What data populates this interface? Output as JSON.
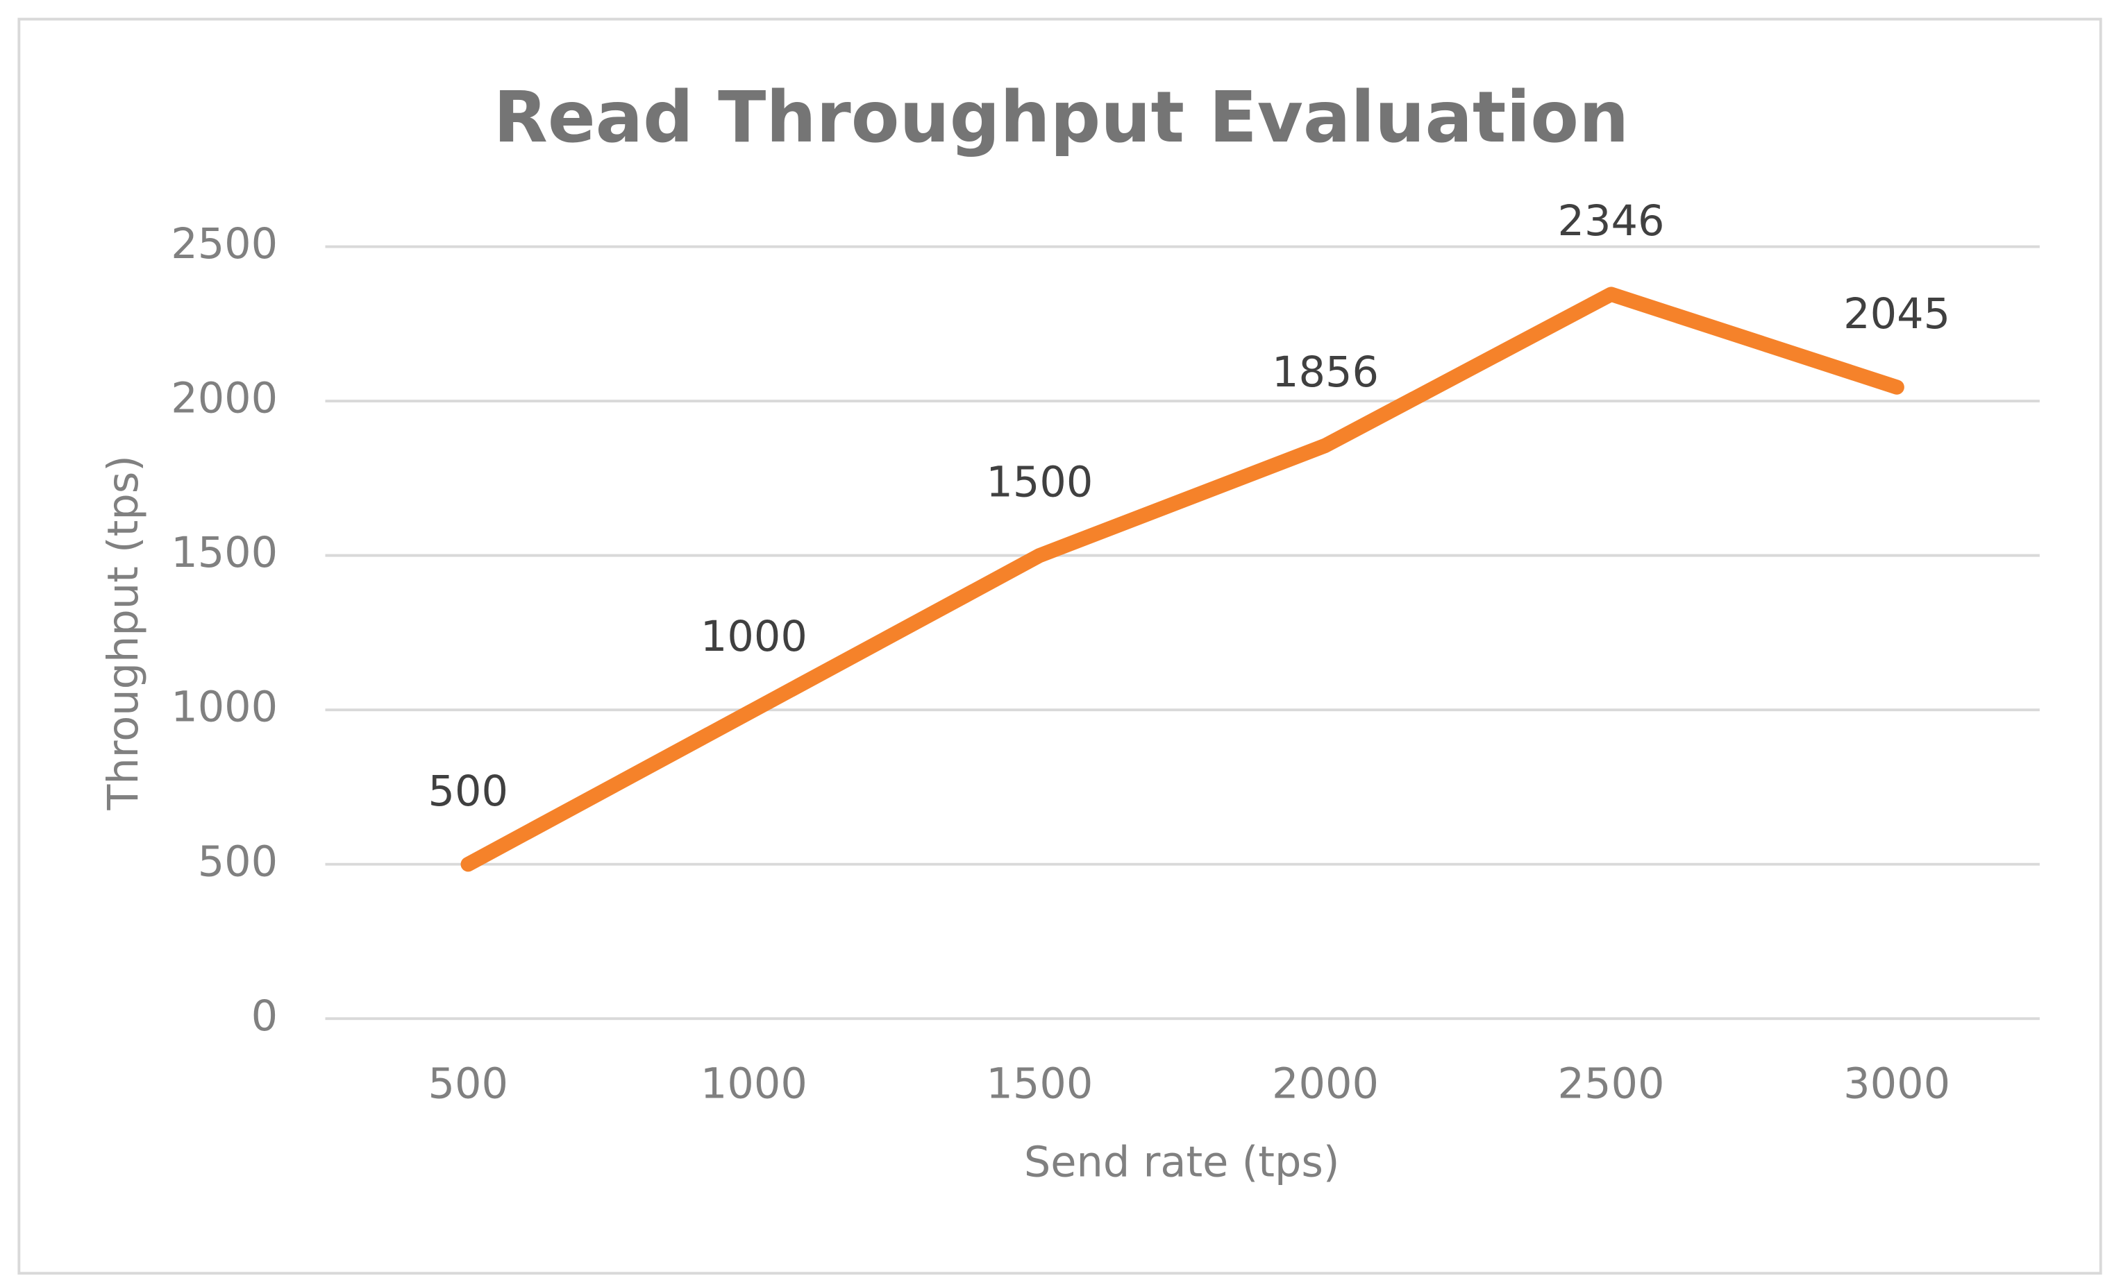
{
  "chart_data": {
    "type": "line",
    "title": "Read Throughput Evaluation",
    "x_label": "Send rate (tps)",
    "y_label": "Throughput (tps)",
    "categories": [
      "500",
      "1000",
      "1500",
      "2000",
      "2500",
      "3000"
    ],
    "values": [
      500,
      1000,
      1500,
      1856,
      2346,
      2045
    ],
    "color": "#f5822a",
    "ylim": [
      0,
      2500
    ],
    "yticks": [
      0,
      500,
      1000,
      1500,
      2000,
      2500
    ],
    "grid": true,
    "data_labels": true
  }
}
